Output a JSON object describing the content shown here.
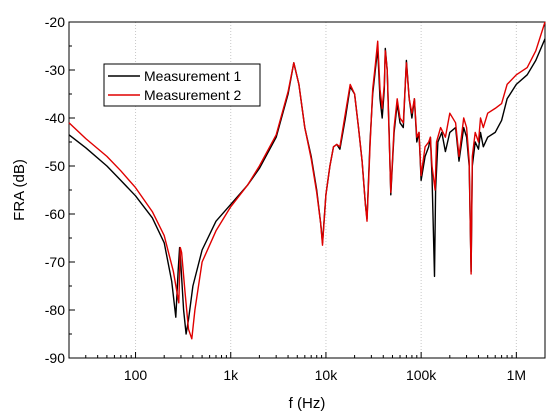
{
  "chart_data": {
    "type": "line",
    "xlabel": "f (Hz)",
    "ylabel": "FRA (dB)",
    "xscale": "log",
    "xlim": [
      20,
      2000000
    ],
    "ylim": [
      -90,
      -20
    ],
    "x_ticks": [
      {
        "value": 100,
        "label": "100"
      },
      {
        "value": 1000,
        "label": "1k"
      },
      {
        "value": 10000,
        "label": "10k"
      },
      {
        "value": 100000,
        "label": "100k"
      },
      {
        "value": 1000000,
        "label": "1M"
      }
    ],
    "y_ticks": [
      {
        "value": -20,
        "label": "-20"
      },
      {
        "value": -30,
        "label": "-30"
      },
      {
        "value": -40,
        "label": "-40"
      },
      {
        "value": -50,
        "label": "-50"
      },
      {
        "value": -60,
        "label": "-60"
      },
      {
        "value": -70,
        "label": "-70"
      },
      {
        "value": -80,
        "label": "-80"
      },
      {
        "value": -90,
        "label": "-90"
      }
    ],
    "grid": "vertical dotted at decades",
    "legend_position": "top-left",
    "series": [
      {
        "name": "Measurement 1",
        "color": "#000000",
        "points": [
          [
            20,
            -43.5
          ],
          [
            30,
            -46.2
          ],
          [
            50,
            -50.0
          ],
          [
            70,
            -53.0
          ],
          [
            100,
            -56.2
          ],
          [
            150,
            -60.8
          ],
          [
            200,
            -66.0
          ],
          [
            240,
            -74.0
          ],
          [
            265,
            -81.5
          ],
          [
            280,
            -72.0
          ],
          [
            290,
            -67.0
          ],
          [
            300,
            -71.0
          ],
          [
            320,
            -80.0
          ],
          [
            340,
            -85.0
          ],
          [
            360,
            -82.0
          ],
          [
            400,
            -75.0
          ],
          [
            500,
            -67.5
          ],
          [
            700,
            -61.5
          ],
          [
            1000,
            -58.0
          ],
          [
            1500,
            -54.0
          ],
          [
            2000,
            -50.5
          ],
          [
            3000,
            -44.0
          ],
          [
            4000,
            -35.0
          ],
          [
            4600,
            -28.5
          ],
          [
            5200,
            -33.0
          ],
          [
            6000,
            -42.0
          ],
          [
            7000,
            -48.0
          ],
          [
            8000,
            -55.0
          ],
          [
            8800,
            -62.0
          ],
          [
            9200,
            -66.0
          ],
          [
            10000,
            -56.0
          ],
          [
            11000,
            -50.0
          ],
          [
            12000,
            -46.0
          ],
          [
            13000,
            -45.5
          ],
          [
            14000,
            -46.5
          ],
          [
            16000,
            -40.0
          ],
          [
            18000,
            -33.5
          ],
          [
            20000,
            -35.0
          ],
          [
            22000,
            -42.0
          ],
          [
            24000,
            -49.0
          ],
          [
            26000,
            -58.0
          ],
          [
            27000,
            -61.0
          ],
          [
            29000,
            -45.0
          ],
          [
            31000,
            -35.0
          ],
          [
            33000,
            -30.0
          ],
          [
            35000,
            -25.5
          ],
          [
            37000,
            -36.0
          ],
          [
            39000,
            -40.0
          ],
          [
            41000,
            -34.0
          ],
          [
            42000,
            -25.5
          ],
          [
            44000,
            -30.0
          ],
          [
            46000,
            -42.0
          ],
          [
            48000,
            -56.0
          ],
          [
            52000,
            -43.0
          ],
          [
            56000,
            -37.0
          ],
          [
            60000,
            -41.0
          ],
          [
            65000,
            -42.0
          ],
          [
            70000,
            -28.0
          ],
          [
            75000,
            -36.0
          ],
          [
            80000,
            -40.0
          ],
          [
            85000,
            -36.0
          ],
          [
            90000,
            -45.0
          ],
          [
            95000,
            -43.0
          ],
          [
            100000,
            -53.0
          ],
          [
            110000,
            -48.0
          ],
          [
            120000,
            -46.0
          ],
          [
            125000,
            -44.0
          ],
          [
            130000,
            -52.0
          ],
          [
            138000,
            -73.0
          ],
          [
            142000,
            -55.0
          ],
          [
            150000,
            -45.0
          ],
          [
            165000,
            -43.0
          ],
          [
            180000,
            -47.0
          ],
          [
            200000,
            -43.0
          ],
          [
            230000,
            -42.0
          ],
          [
            250000,
            -49.0
          ],
          [
            280000,
            -42.0
          ],
          [
            300000,
            -44.0
          ],
          [
            320000,
            -50.0
          ],
          [
            335000,
            -72.0
          ],
          [
            345000,
            -50.0
          ],
          [
            370000,
            -45.0
          ],
          [
            400000,
            -46.5
          ],
          [
            420000,
            -43.0
          ],
          [
            450000,
            -46.0
          ],
          [
            500000,
            -44.0
          ],
          [
            600000,
            -43.0
          ],
          [
            700000,
            -40.5
          ],
          [
            800000,
            -36.0
          ],
          [
            1000000,
            -33.0
          ],
          [
            1300000,
            -31.0
          ],
          [
            1600000,
            -28.0
          ],
          [
            2000000,
            -23.5
          ]
        ]
      },
      {
        "name": "Measurement 2",
        "color": "#e00000",
        "points": [
          [
            20,
            -41.0
          ],
          [
            30,
            -44.3
          ],
          [
            50,
            -48.0
          ],
          [
            70,
            -51.0
          ],
          [
            100,
            -54.5
          ],
          [
            150,
            -59.5
          ],
          [
            200,
            -64.5
          ],
          [
            250,
            -72.0
          ],
          [
            285,
            -78.5
          ],
          [
            295,
            -67.0
          ],
          [
            305,
            -68.0
          ],
          [
            330,
            -76.0
          ],
          [
            360,
            -84.0
          ],
          [
            390,
            -86.0
          ],
          [
            420,
            -80.0
          ],
          [
            500,
            -70.0
          ],
          [
            700,
            -63.5
          ],
          [
            1000,
            -58.5
          ],
          [
            1500,
            -54.0
          ],
          [
            2000,
            -50.0
          ],
          [
            3000,
            -43.5
          ],
          [
            4000,
            -34.5
          ],
          [
            4600,
            -28.5
          ],
          [
            5200,
            -33.0
          ],
          [
            6000,
            -42.0
          ],
          [
            7000,
            -48.5
          ],
          [
            8000,
            -55.5
          ],
          [
            8800,
            -62.0
          ],
          [
            9200,
            -66.5
          ],
          [
            10000,
            -56.0
          ],
          [
            11000,
            -50.0
          ],
          [
            12000,
            -46.0
          ],
          [
            13000,
            -45.5
          ],
          [
            14000,
            -46.0
          ],
          [
            16000,
            -39.0
          ],
          [
            18000,
            -33.0
          ],
          [
            20000,
            -35.0
          ],
          [
            22000,
            -42.0
          ],
          [
            24000,
            -49.0
          ],
          [
            26000,
            -58.0
          ],
          [
            27000,
            -61.5
          ],
          [
            29000,
            -46.0
          ],
          [
            31000,
            -34.0
          ],
          [
            33000,
            -29.0
          ],
          [
            35000,
            -24.0
          ],
          [
            37000,
            -34.0
          ],
          [
            39000,
            -38.0
          ],
          [
            41000,
            -33.0
          ],
          [
            42000,
            -26.0
          ],
          [
            44000,
            -30.0
          ],
          [
            46000,
            -43.0
          ],
          [
            48000,
            -55.5
          ],
          [
            52000,
            -42.0
          ],
          [
            56000,
            -36.0
          ],
          [
            60000,
            -40.0
          ],
          [
            65000,
            -41.0
          ],
          [
            70000,
            -28.5
          ],
          [
            75000,
            -36.0
          ],
          [
            80000,
            -39.0
          ],
          [
            85000,
            -36.0
          ],
          [
            90000,
            -44.0
          ],
          [
            95000,
            -43.0
          ],
          [
            100000,
            -52.0
          ],
          [
            110000,
            -46.0
          ],
          [
            120000,
            -45.0
          ],
          [
            125000,
            -44.0
          ],
          [
            130000,
            -50.0
          ],
          [
            140000,
            -55.0
          ],
          [
            145000,
            -45.0
          ],
          [
            160000,
            -42.0
          ],
          [
            180000,
            -44.0
          ],
          [
            200000,
            -39.0
          ],
          [
            230000,
            -41.0
          ],
          [
            250000,
            -48.0
          ],
          [
            280000,
            -40.0
          ],
          [
            300000,
            -42.0
          ],
          [
            320000,
            -49.0
          ],
          [
            335000,
            -72.5
          ],
          [
            345000,
            -48.0
          ],
          [
            370000,
            -43.0
          ],
          [
            400000,
            -45.0
          ],
          [
            420000,
            -40.0
          ],
          [
            450000,
            -42.0
          ],
          [
            500000,
            -39.0
          ],
          [
            600000,
            -38.0
          ],
          [
            700000,
            -37.0
          ],
          [
            800000,
            -33.0
          ],
          [
            1000000,
            -31.0
          ],
          [
            1300000,
            -29.5
          ],
          [
            1600000,
            -26.0
          ],
          [
            2000000,
            -20.0
          ]
        ]
      }
    ]
  }
}
